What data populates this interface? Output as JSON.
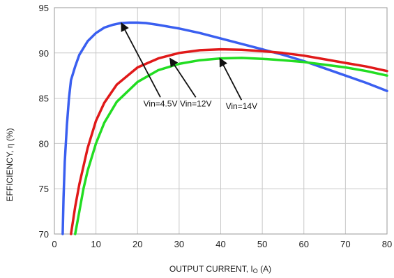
{
  "chart_data": {
    "type": "line",
    "title": "",
    "xlabel": "OUTPUT CURRENT, I",
    "xlabel_sub": "O",
    "xlabel_unit": " (A)",
    "ylabel": "EFFICIENCY, η  (%)",
    "xlim": [
      0,
      80
    ],
    "ylim": [
      70,
      95
    ],
    "xticks": [
      0,
      10,
      20,
      30,
      40,
      50,
      60,
      70,
      80
    ],
    "yticks": [
      70,
      75,
      80,
      85,
      90,
      95
    ],
    "grid": true,
    "legend": "none",
    "series": [
      {
        "color": "#3a5ff0",
        "points": [
          [
            2,
            70
          ],
          [
            2.2,
            74
          ],
          [
            2.5,
            78
          ],
          [
            3,
            82
          ],
          [
            3.5,
            85
          ],
          [
            4,
            87
          ],
          [
            5,
            88.5
          ],
          [
            6,
            89.8
          ],
          [
            8,
            91.3
          ],
          [
            10,
            92.2
          ],
          [
            12,
            92.8
          ],
          [
            14,
            93.1
          ],
          [
            16,
            93.3
          ],
          [
            18,
            93.35
          ],
          [
            20,
            93.35
          ],
          [
            22,
            93.3
          ],
          [
            25,
            93.1
          ],
          [
            30,
            92.7
          ],
          [
            35,
            92.2
          ],
          [
            40,
            91.6
          ],
          [
            45,
            91
          ],
          [
            50,
            90.4
          ],
          [
            55,
            89.8
          ],
          [
            60,
            89.1
          ],
          [
            65,
            88.3
          ],
          [
            70,
            87.5
          ],
          [
            75,
            86.7
          ],
          [
            80,
            85.8
          ]
        ]
      },
      {
        "color": "#e01919",
        "points": [
          [
            4,
            70
          ],
          [
            5,
            73
          ],
          [
            6,
            75.5
          ],
          [
            8,
            79.5
          ],
          [
            10,
            82.5
          ],
          [
            12,
            84.5
          ],
          [
            15,
            86.5
          ],
          [
            20,
            88.4
          ],
          [
            25,
            89.4
          ],
          [
            30,
            90
          ],
          [
            35,
            90.3
          ],
          [
            40,
            90.4
          ],
          [
            45,
            90.35
          ],
          [
            50,
            90.2
          ],
          [
            55,
            90
          ],
          [
            60,
            89.7
          ],
          [
            65,
            89.3
          ],
          [
            70,
            88.9
          ],
          [
            75,
            88.5
          ],
          [
            80,
            88
          ]
        ]
      },
      {
        "color": "#22dd22",
        "points": [
          [
            5,
            70
          ],
          [
            6,
            72.5
          ],
          [
            7,
            75
          ],
          [
            8,
            77
          ],
          [
            10,
            80
          ],
          [
            12,
            82.3
          ],
          [
            15,
            84.6
          ],
          [
            20,
            86.8
          ],
          [
            25,
            88.1
          ],
          [
            30,
            88.8
          ],
          [
            35,
            89.2
          ],
          [
            40,
            89.4
          ],
          [
            45,
            89.45
          ],
          [
            50,
            89.35
          ],
          [
            55,
            89.2
          ],
          [
            60,
            89
          ],
          [
            65,
            88.7
          ],
          [
            70,
            88.4
          ],
          [
            75,
            88
          ],
          [
            80,
            87.5
          ]
        ]
      }
    ],
    "annotations": [
      {
        "text": "Vin=4.5V",
        "label_at": [
          25.5,
          84.1
        ],
        "tip_at": [
          16.1,
          93.3
        ]
      },
      {
        "text": "Vin=12V",
        "label_at": [
          34,
          84.1
        ],
        "tip_at": [
          27.8,
          89.4
        ]
      },
      {
        "text": "Vin=14V",
        "label_at": [
          45,
          83.8
        ],
        "tip_at": [
          39.8,
          89.4
        ]
      }
    ]
  }
}
